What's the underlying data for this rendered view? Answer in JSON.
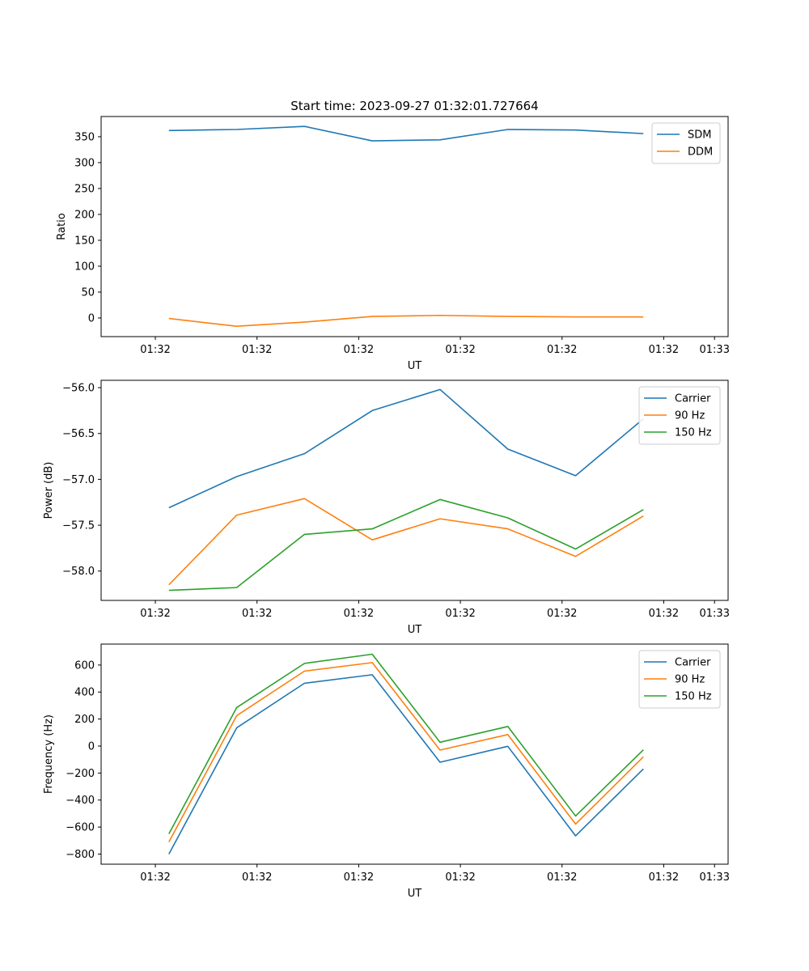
{
  "chart_data": [
    {
      "type": "line",
      "title": "Start time: 2023-09-27 01:32:01.727664",
      "xlabel": "UT",
      "ylabel": "Ratio",
      "legend": "top-right",
      "grid": false,
      "x_ticks": [
        "01:32",
        "01:32",
        "01:32",
        "01:32",
        "01:32",
        "01:32",
        "01:33"
      ],
      "y_ticks": [
        "0",
        "50",
        "100",
        "150",
        "200",
        "250",
        "300",
        "350"
      ],
      "ylim": [
        -36,
        389
      ],
      "x": [
        1,
        2,
        3,
        4,
        5,
        6,
        7,
        8
      ],
      "series": [
        {
          "name": "SDM",
          "color": "#1f77b4",
          "values": [
            362,
            364,
            370,
            342,
            344,
            364,
            363,
            356
          ]
        },
        {
          "name": "DDM",
          "color": "#ff7f0e",
          "values": [
            -1,
            -16,
            -8,
            3,
            5,
            3,
            2,
            2
          ]
        }
      ]
    },
    {
      "type": "line",
      "title": "",
      "xlabel": "UT",
      "ylabel": "Power (dB)",
      "legend": "top-right",
      "grid": false,
      "x_ticks": [
        "01:32",
        "01:32",
        "01:32",
        "01:32",
        "01:32",
        "01:32",
        "01:33"
      ],
      "y_ticks": [
        "−58.0",
        "−57.5",
        "−57.0",
        "−56.5",
        "−56.0"
      ],
      "ylim": [
        -58.32,
        -55.92
      ],
      "x": [
        1,
        2,
        3,
        4,
        5,
        6,
        7,
        8
      ],
      "series": [
        {
          "name": "Carrier",
          "color": "#1f77b4",
          "values": [
            -57.31,
            -56.97,
            -56.72,
            -56.25,
            -56.02,
            -56.67,
            -56.96,
            -56.34
          ]
        },
        {
          "name": "90 Hz",
          "color": "#ff7f0e",
          "values": [
            -58.15,
            -57.39,
            -57.21,
            -57.66,
            -57.43,
            -57.54,
            -57.84,
            -57.4
          ]
        },
        {
          "name": "150 Hz",
          "color": "#2ca02c",
          "values": [
            -58.21,
            -58.18,
            -57.6,
            -57.54,
            -57.22,
            -57.42,
            -57.76,
            -57.33
          ]
        }
      ]
    },
    {
      "type": "line",
      "title": "",
      "xlabel": "UT",
      "ylabel": "Frequency (Hz)",
      "legend": "top-right",
      "grid": false,
      "x_ticks": [
        "01:32",
        "01:32",
        "01:32",
        "01:32",
        "01:32",
        "01:32",
        "01:33"
      ],
      "y_ticks": [
        "−800",
        "−600",
        "−400",
        "−200",
        "0",
        "200",
        "400",
        "600"
      ],
      "ylim": [
        -875,
        755
      ],
      "x": [
        1,
        2,
        3,
        4,
        5,
        6,
        7,
        8
      ],
      "series": [
        {
          "name": "Carrier",
          "color": "#1f77b4",
          "values": [
            -800,
            135,
            465,
            528,
            -120,
            -2,
            -665,
            -170
          ]
        },
        {
          "name": "90 Hz",
          "color": "#ff7f0e",
          "values": [
            -710,
            225,
            555,
            618,
            -30,
            85,
            -578,
            -80
          ]
        },
        {
          "name": "150 Hz",
          "color": "#2ca02c",
          "values": [
            -650,
            285,
            612,
            680,
            28,
            145,
            -518,
            -28
          ]
        }
      ]
    }
  ]
}
